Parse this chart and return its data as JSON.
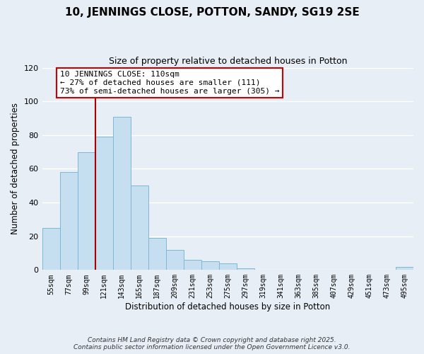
{
  "title": "10, JENNINGS CLOSE, POTTON, SANDY, SG19 2SE",
  "subtitle": "Size of property relative to detached houses in Potton",
  "xlabel": "Distribution of detached houses by size in Potton",
  "ylabel": "Number of detached properties",
  "bar_color": "#c5dff0",
  "bar_edge_color": "#7db8d8",
  "categories": [
    "55sqm",
    "77sqm",
    "99sqm",
    "121sqm",
    "143sqm",
    "165sqm",
    "187sqm",
    "209sqm",
    "231sqm",
    "253sqm",
    "275sqm",
    "297sqm",
    "319sqm",
    "341sqm",
    "363sqm",
    "385sqm",
    "407sqm",
    "429sqm",
    "451sqm",
    "473sqm",
    "495sqm"
  ],
  "values": [
    25,
    58,
    70,
    79,
    91,
    50,
    19,
    12,
    6,
    5,
    4,
    1,
    0,
    0,
    0,
    0,
    0,
    0,
    0,
    0,
    2
  ],
  "ylim": [
    0,
    120
  ],
  "yticks": [
    0,
    20,
    40,
    60,
    80,
    100,
    120
  ],
  "vline_color": "#aa0000",
  "annotation_line1": "10 JENNINGS CLOSE: 110sqm",
  "annotation_line2": "← 27% of detached houses are smaller (111)",
  "annotation_line3": "73% of semi-detached houses are larger (305) →",
  "annotation_box_color": "#ffffff",
  "annotation_box_edge": "#cc0000",
  "footer_line1": "Contains HM Land Registry data © Crown copyright and database right 2025.",
  "footer_line2": "Contains public sector information licensed under the Open Government Licence v3.0.",
  "background_color": "#e8eef5",
  "plot_bg_color": "#e8eef5",
  "grid_color": "#ffffff"
}
